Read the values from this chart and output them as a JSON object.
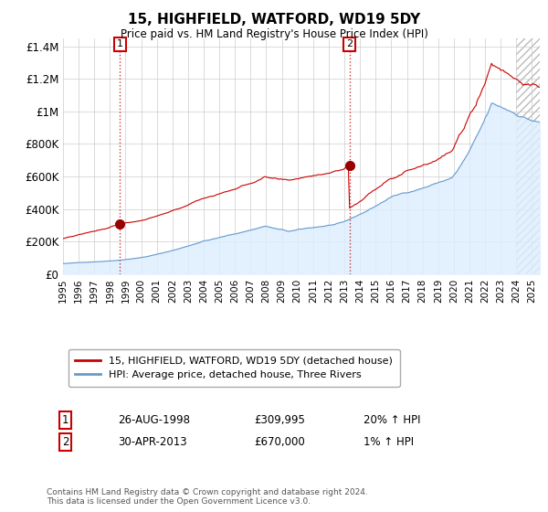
{
  "title": "15, HIGHFIELD, WATFORD, WD19 5DY",
  "subtitle": "Price paid vs. HM Land Registry's House Price Index (HPI)",
  "ylabel_ticks": [
    "£0",
    "£200K",
    "£400K",
    "£600K",
    "£800K",
    "£1M",
    "£1.2M",
    "£1.4M"
  ],
  "ytick_values": [
    0,
    200000,
    400000,
    600000,
    800000,
    1000000,
    1200000,
    1400000
  ],
  "ylim": [
    0,
    1450000
  ],
  "hpi_color": "#6699cc",
  "hpi_fill_color": "#ddeeff",
  "price_color": "#cc0000",
  "grid_color": "#cccccc",
  "bg_color": "#ffffff",
  "sale1_year": 1998.648,
  "sale1_price": 309995,
  "sale2_year": 2013.328,
  "sale2_price": 670000,
  "hatch_start": 2024.0,
  "annotation1": {
    "label": "1",
    "date_idx": 1998.648,
    "price": 309995,
    "text": "26-AUG-1998",
    "amount": "£309,995",
    "pct": "20% ↑ HPI"
  },
  "annotation2": {
    "label": "2",
    "date_idx": 2013.328,
    "price": 670000,
    "text": "30-APR-2013",
    "amount": "£670,000",
    "pct": "1% ↑ HPI"
  },
  "legend_line1": "15, HIGHFIELD, WATFORD, WD19 5DY (detached house)",
  "legend_line2": "HPI: Average price, detached house, Three Rivers",
  "footer": "Contains HM Land Registry data © Crown copyright and database right 2024.\nThis data is licensed under the Open Government Licence v3.0.",
  "xmin": 1995.0,
  "xmax": 2025.5
}
